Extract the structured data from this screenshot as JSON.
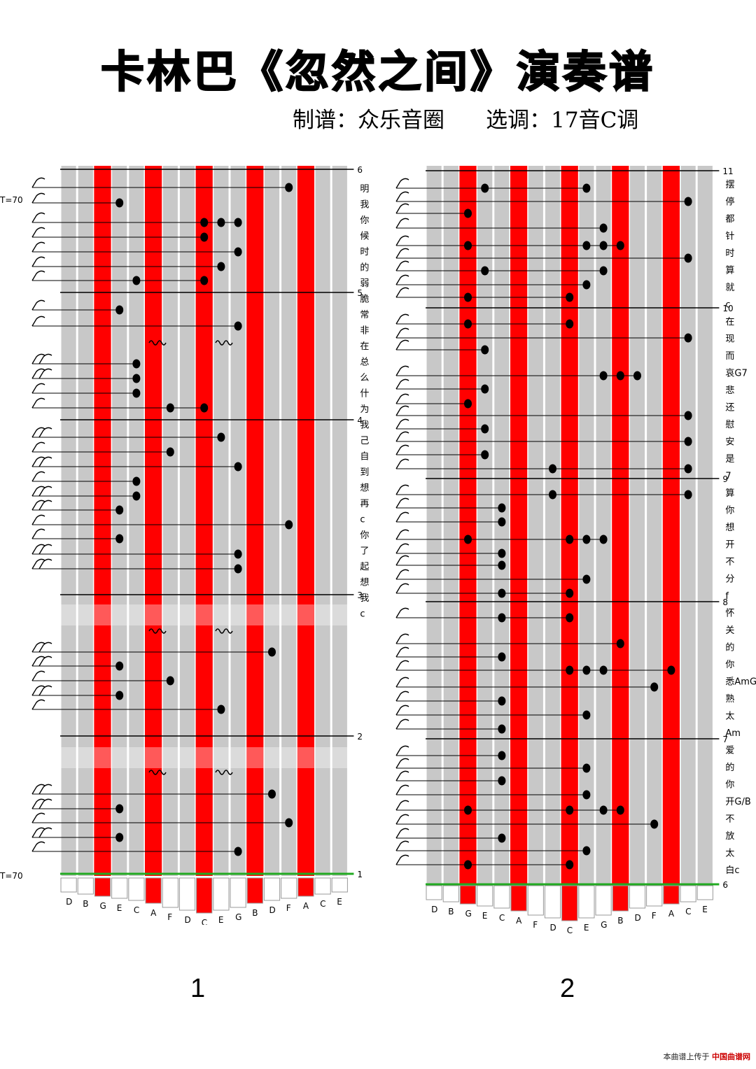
{
  "title": "卡林巴《忽然之间》演奏谱",
  "subtitle": "制谱：众乐音圈      选调：17音C调",
  "footer": {
    "prefix": "本曲谱上传于",
    "site": "中国曲谱网"
  },
  "colors": {
    "red": "#ff0000",
    "grey": "#c8c8c8",
    "green": "#22aa22"
  },
  "key_labels": [
    "D",
    "B",
    "G",
    "E",
    "C",
    "A",
    "F",
    "D",
    "C",
    "E",
    "G",
    "B",
    "D",
    "F",
    "A",
    "C",
    "E"
  ],
  "panels": [
    {
      "page_number": "1",
      "tempo": "T=70",
      "measure_numbers": [
        "6",
        "5",
        "4",
        "3",
        "2",
        "1"
      ],
      "lyrics": [
        "明",
        "我",
        "你",
        "候",
        "时",
        "的",
        "弱",
        "脆",
        "常",
        "非",
        "在",
        "总",
        "么",
        "什",
        "为",
        "我",
        "己",
        "自",
        "到",
        "想",
        "再",
        "c",
        "你",
        "了",
        "起",
        "想",
        "我",
        "c"
      ]
    },
    {
      "page_number": "2",
      "measure_numbers": [
        "11",
        "10",
        "9",
        "8",
        "7",
        "6"
      ],
      "lyrics": [
        "摆",
        "停",
        "都",
        "针",
        "时",
        "算",
        "就",
        "c",
        "在",
        "现",
        "而",
        "哀G7",
        "悲",
        "还",
        "慰",
        "安",
        "是",
        "7",
        "算",
        "你",
        "想",
        "开",
        "不",
        "分",
        "f",
        "怀",
        "关",
        "的",
        "你",
        "悉AmG",
        "熟",
        "太",
        "Am",
        "爱",
        "的",
        "你",
        "开G/B",
        "不",
        "放",
        "太",
        "白c"
      ]
    }
  ]
}
